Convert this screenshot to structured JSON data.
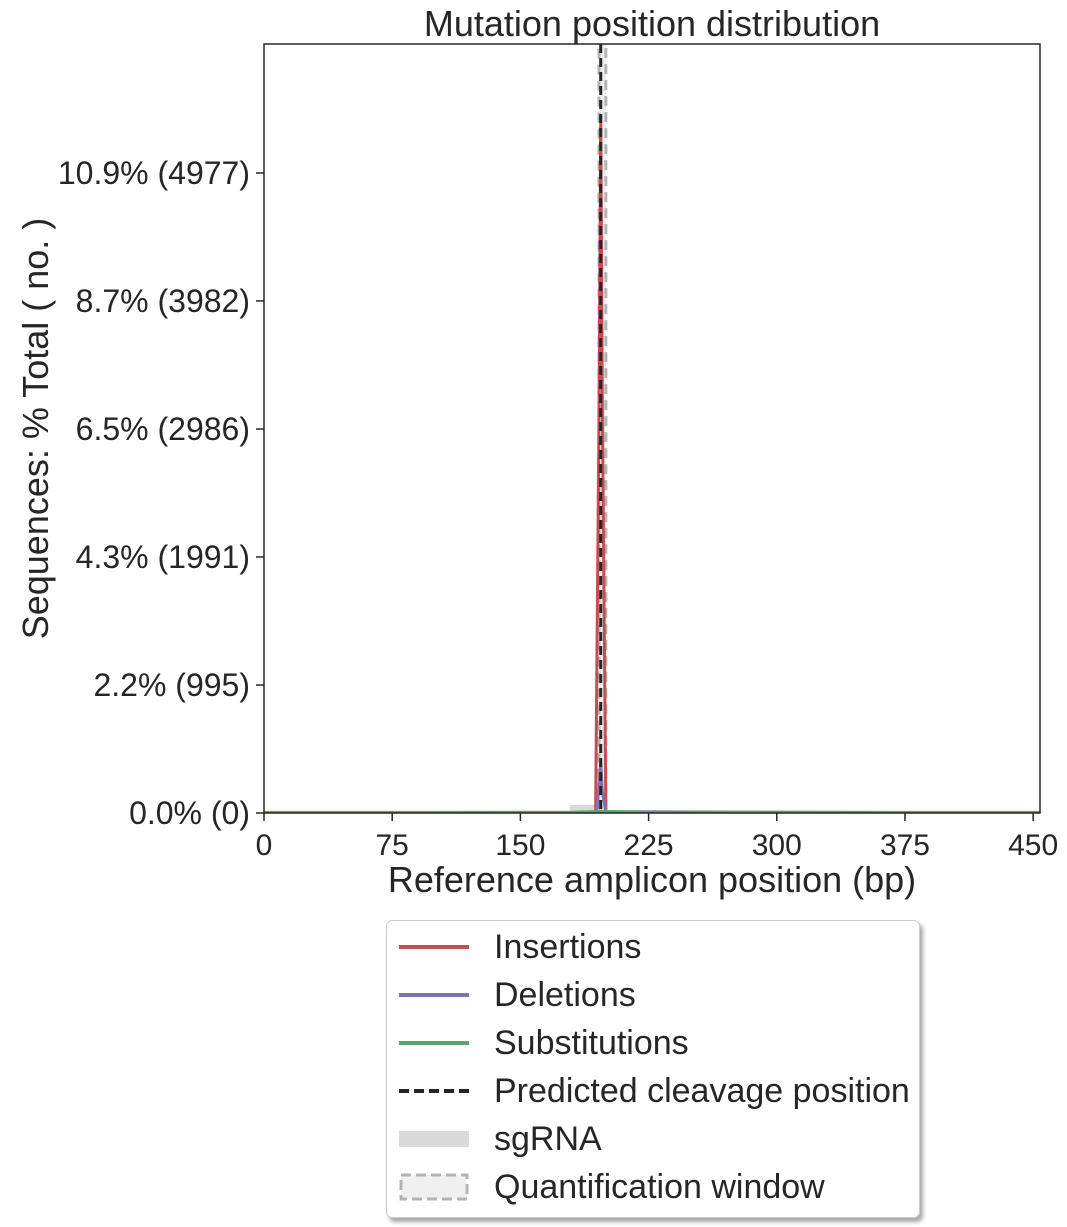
{
  "chart_data": {
    "type": "line",
    "title": "Mutation position distribution",
    "xlabel": "Reference amplicon position (bp)",
    "ylabel": "Sequences: % Total ( no. )",
    "xlim": [
      0,
      454
    ],
    "ylim": [
      0,
      45300
    ],
    "x_ticks": [
      0,
      75,
      150,
      225,
      300,
      375,
      450
    ],
    "y_ticks": [
      {
        "value": 0,
        "label": "0.0% (0)"
      },
      {
        "value": 995,
        "label": "2.2% (995)"
      },
      {
        "value": 1991,
        "label": "4.3% (1991)"
      },
      {
        "value": 2986,
        "label": "6.5% (2986)"
      },
      {
        "value": 3982,
        "label": "8.7% (3982)"
      },
      {
        "value": 4977,
        "label": "10.9% (4977)"
      }
    ],
    "series": [
      {
        "name": "Insertions",
        "color": "#c44e52",
        "points": [
          [
            0,
            0
          ],
          [
            194,
            0
          ],
          [
            196,
            3100
          ],
          [
            197,
            5420
          ],
          [
            198,
            3100
          ],
          [
            200,
            0
          ],
          [
            454,
            0
          ]
        ]
      },
      {
        "name": "Deletions",
        "color": "#8172b2",
        "points": [
          [
            0,
            0
          ],
          [
            193,
            0
          ],
          [
            195,
            40
          ],
          [
            197,
            400
          ],
          [
            198,
            160
          ],
          [
            200,
            10
          ],
          [
            454,
            0
          ]
        ]
      },
      {
        "name": "Substitutions",
        "color": "#55a868",
        "points": [
          [
            0,
            5
          ],
          [
            100,
            5
          ],
          [
            180,
            6
          ],
          [
            196,
            12
          ],
          [
            200,
            12
          ],
          [
            220,
            6
          ],
          [
            454,
            5
          ]
        ]
      }
    ],
    "cleavage_position": 197,
    "sgrna_range": [
      179,
      199
    ],
    "quantification_window": [
      196,
      200
    ],
    "legend": {
      "placement": "below",
      "entries": [
        {
          "label": "Insertions",
          "style": "line",
          "color": "#c44e52"
        },
        {
          "label": "Deletions",
          "style": "line",
          "color": "#8172b2"
        },
        {
          "label": "Substitutions",
          "style": "line",
          "color": "#55a868"
        },
        {
          "label": "Predicted cleavage position",
          "style": "dashed",
          "color": "#262626"
        },
        {
          "label": "sgRNA",
          "style": "band",
          "color": "#d9d9d9"
        },
        {
          "label": "Quantification window",
          "style": "dashed-box",
          "color": "#b3b3b3"
        }
      ]
    }
  }
}
